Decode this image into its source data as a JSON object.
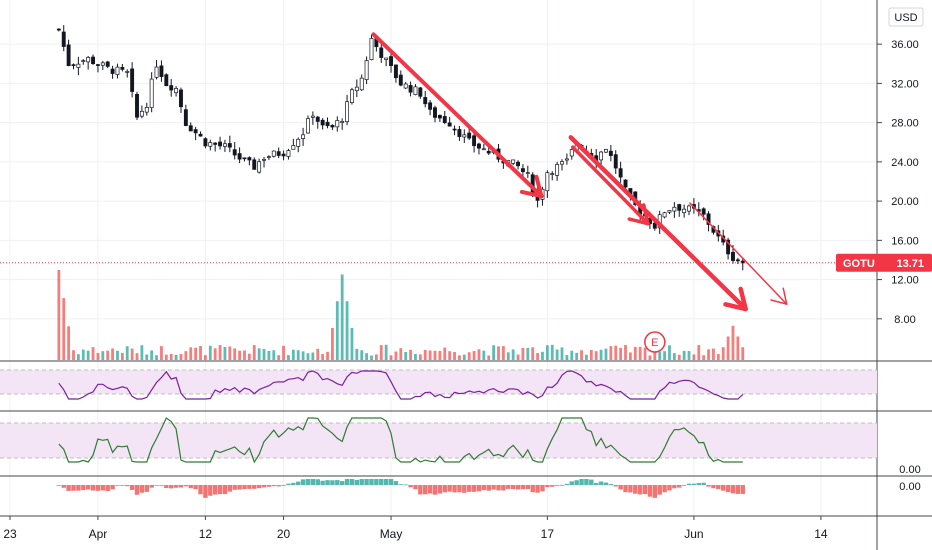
{
  "chart_data": {
    "type": "candlestick",
    "symbol": "GOTU",
    "currency": "USD",
    "last_price": "13.71",
    "y_axis_ticks": [
      "36.00",
      "32.00",
      "28.00",
      "24.00",
      "20.00",
      "16.00",
      "12.00",
      "8.00"
    ],
    "y_tick_values": [
      36,
      32,
      28,
      24,
      20,
      16,
      12,
      8
    ],
    "ylim": [
      3.7,
      40.5
    ],
    "x_axis_labels": [
      {
        "text": "23",
        "day": 0
      },
      {
        "text": "Apr",
        "day": 9
      },
      {
        "text": "12",
        "day": 20
      },
      {
        "text": "20",
        "day": 28
      },
      {
        "text": "May",
        "day": 39
      },
      {
        "text": "17",
        "day": 55
      },
      {
        "text": "Jun",
        "day": 70
      },
      {
        "text": "14",
        "day": 83
      }
    ],
    "close_path": [
      [
        5,
        37.5
      ],
      [
        6,
        34.0
      ],
      [
        8,
        34.5
      ],
      [
        10,
        33.5
      ],
      [
        12,
        33.0
      ],
      [
        13,
        28.5
      ],
      [
        14,
        30.0
      ],
      [
        15,
        34.0
      ],
      [
        16,
        32.0
      ],
      [
        17,
        31.5
      ],
      [
        18,
        28.0
      ],
      [
        19,
        27.0
      ],
      [
        20,
        26.0
      ],
      [
        22,
        25.5
      ],
      [
        24,
        24.0
      ],
      [
        25,
        23.5
      ],
      [
        26,
        24.5
      ],
      [
        28,
        25.0
      ],
      [
        30,
        27.0
      ],
      [
        31,
        29.0
      ],
      [
        32,
        27.5
      ],
      [
        33,
        27.5
      ],
      [
        34,
        28.5
      ],
      [
        35,
        31.0
      ],
      [
        36,
        32.5
      ],
      [
        37,
        36.5
      ],
      [
        38,
        35.0
      ],
      [
        39,
        33.5
      ],
      [
        40,
        32.0
      ],
      [
        42,
        31.0
      ],
      [
        43,
        29.0
      ],
      [
        45,
        28.0
      ],
      [
        47,
        26.0
      ],
      [
        49,
        25.0
      ],
      [
        51,
        24.0
      ],
      [
        52,
        23.5
      ],
      [
        53,
        22.5
      ],
      [
        54,
        20.0
      ],
      [
        55,
        23.0
      ],
      [
        57,
        24.0
      ],
      [
        58,
        26.0
      ],
      [
        60,
        24.5
      ],
      [
        61,
        25.5
      ],
      [
        62,
        23.5
      ],
      [
        63,
        21.0
      ],
      [
        64,
        19.5
      ],
      [
        65,
        18.5
      ],
      [
        66,
        17.5
      ],
      [
        67,
        19.0
      ],
      [
        68,
        19.5
      ],
      [
        70,
        19.0
      ],
      [
        71,
        18.5
      ],
      [
        72,
        17.0
      ],
      [
        73,
        15.5
      ],
      [
        74,
        14.3
      ],
      [
        75,
        13.71
      ]
    ],
    "volume_spikes": [
      {
        "day": 5,
        "relative": 1.0
      },
      {
        "day": 34,
        "relative": 0.95
      },
      {
        "day": 74,
        "relative": 0.38
      }
    ],
    "earnings_marker": {
      "day": 66,
      "label": "E"
    },
    "annotations": "downward trend arrows drawn over price",
    "rsi_panel": {
      "band_shaded": true
    },
    "stoch_panel": {
      "band_shaded": true,
      "axis_tick": "0.00"
    },
    "macd_panel": {
      "axis_tick": "0.00"
    },
    "colors": {
      "up": "#26a69a",
      "down": "#ef5350",
      "arrow": "#f23645",
      "rsi": "#7b1fa2",
      "stoch": "#2e7d32",
      "band": "#f3e5f5",
      "price_badge": "#f23645",
      "grid": "#eef0f4"
    }
  }
}
